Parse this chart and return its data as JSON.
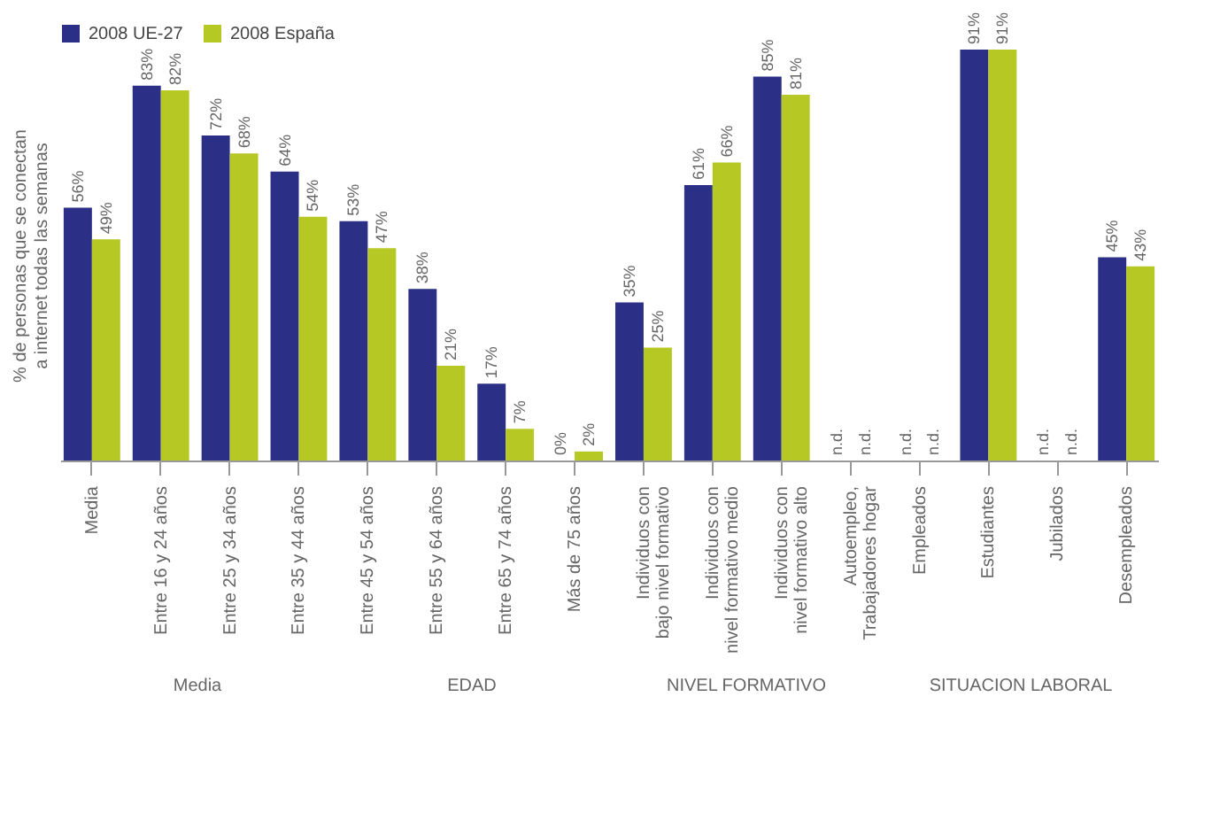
{
  "chart_data": {
    "type": "bar",
    "ylabel": "% de personas que se conectan\na internet todas las semanas",
    "categories": [
      "Media",
      "Entre 16 y 24 años",
      "Entre 25 y 34 años",
      "Entre 35 y 44 años",
      "Entre 45 y 54 años",
      "Entre 55 y 64 años",
      "Entre 65 y 74 años",
      "Más de 75 años",
      "Individuos con\nbajo nivel formativo",
      "Individuos con\nnivel formativo medio",
      "Individuos con\nnivel formativo alto",
      "Autoempleo,\nTrabajadores hogar",
      "Empleados",
      "Estudiantes",
      "Jubilados",
      "Desempleados"
    ],
    "series": [
      {
        "name": "2008 UE-27",
        "color": "#2b2f86",
        "values": [
          56,
          83,
          72,
          64,
          53,
          38,
          17,
          0,
          35,
          61,
          85,
          null,
          null,
          91,
          null,
          45
        ],
        "value_labels": [
          "56%",
          "83%",
          "72%",
          "64%",
          "53%",
          "38%",
          "17%",
          "0%",
          "35%",
          "61%",
          "85%",
          "n.d.",
          "n.d.",
          "91%",
          "n.d.",
          "45%"
        ]
      },
      {
        "name": "2008 España",
        "color": "#b5c824",
        "values": [
          49,
          82,
          68,
          54,
          47,
          21,
          7,
          2,
          25,
          66,
          81,
          null,
          null,
          91,
          null,
          43
        ],
        "value_labels": [
          "49%",
          "82%",
          "68%",
          "54%",
          "47%",
          "21%",
          "7%",
          "2%",
          "25%",
          "66%",
          "81%",
          "n.d.",
          "n.d.",
          "91%",
          "n.d.",
          "43%"
        ]
      }
    ],
    "legend": "top",
    "annotations": [
      "Media",
      "EDAD",
      "NIVEL FORMATIVO",
      "SITUACION LABORAL"
    ]
  }
}
